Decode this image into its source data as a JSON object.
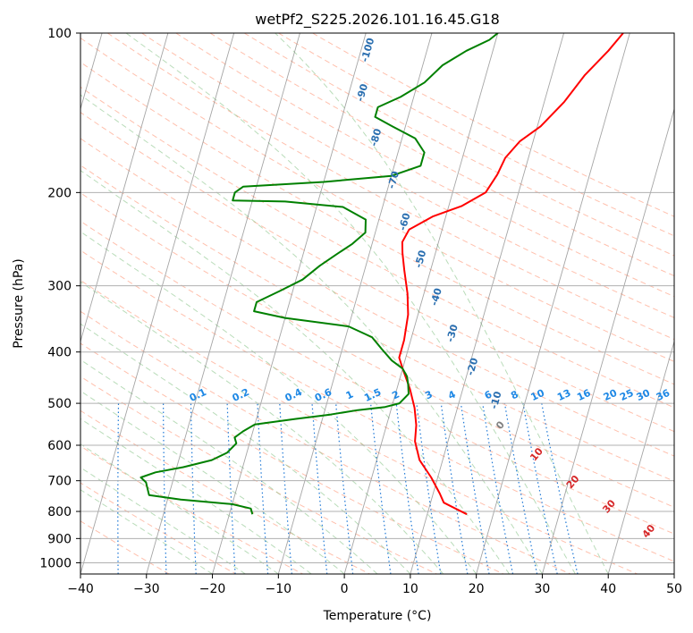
{
  "chart_data": {
    "type": "line",
    "title": "wetPf2_S225.2026.101.16.45.G18",
    "xlabel": "Temperature (°C)",
    "ylabel": "Pressure (hPa)",
    "xlim": [
      -40,
      50
    ],
    "ylim": [
      1050,
      100
    ],
    "y_scale": "log",
    "x_ticks": [
      "−40",
      "−30",
      "−20",
      "−10",
      "0",
      "10",
      "20",
      "30",
      "40",
      "50"
    ],
    "x_tick_values": [
      -40,
      -30,
      -20,
      -10,
      0,
      10,
      20,
      30,
      40,
      50
    ],
    "y_ticks": [
      "100",
      "200",
      "300",
      "400",
      "500",
      "600",
      "700",
      "800",
      "900",
      "1000"
    ],
    "y_tick_values": [
      100,
      200,
      300,
      400,
      500,
      600,
      700,
      800,
      900,
      1000
    ],
    "grid": true,
    "colors": {
      "temperature": "#ff0000",
      "dewpoint": "#008000",
      "isotherm": "#808080",
      "dry_adiabat": "#ff8c69",
      "moist_adiabat": "#7fbf7f",
      "mixing_ratio": "#1e78d6",
      "frame": "#000000"
    },
    "series": [
      {
        "name": "",
        "color": "#ff0000",
        "points": [
          [
            16,
            810
          ],
          [
            12,
            770
          ],
          [
            11,
            740
          ],
          [
            9,
            690
          ],
          [
            6.5,
            640
          ],
          [
            5,
            590
          ],
          [
            4.5,
            550
          ],
          [
            3.5,
            510
          ],
          [
            2,
            470
          ],
          [
            0,
            430
          ],
          [
            -1,
            410
          ],
          [
            -1,
            380
          ],
          [
            -1.5,
            340
          ],
          [
            -2.5,
            310
          ],
          [
            -4,
            280
          ],
          [
            -5,
            260
          ],
          [
            -5.5,
            248
          ],
          [
            -5,
            235
          ],
          [
            -2,
            222
          ],
          [
            2,
            212
          ],
          [
            5,
            200
          ],
          [
            6,
            185
          ],
          [
            6.5,
            172
          ],
          [
            8,
            160
          ],
          [
            10.5,
            150
          ],
          [
            13,
            135
          ],
          [
            15,
            120
          ],
          [
            17.5,
            108
          ],
          [
            19,
            100
          ]
        ]
      },
      {
        "name": "",
        "color": "#008000",
        "points": [
          [
            -16.5,
            810
          ],
          [
            -17,
            790
          ],
          [
            -20,
            775
          ],
          [
            -28,
            760
          ],
          [
            -33,
            745
          ],
          [
            -33.5,
            725
          ],
          [
            -34,
            705
          ],
          [
            -35,
            690
          ],
          [
            -33,
            675
          ],
          [
            -29,
            660
          ],
          [
            -25,
            640
          ],
          [
            -23,
            620
          ],
          [
            -22,
            595
          ],
          [
            -22.5,
            580
          ],
          [
            -21.5,
            565
          ],
          [
            -20,
            548
          ],
          [
            -14,
            535
          ],
          [
            -9,
            525
          ],
          [
            -5,
            515
          ],
          [
            -1,
            508
          ],
          [
            1,
            500
          ],
          [
            2,
            480
          ],
          [
            1.5,
            460
          ],
          [
            1,
            445
          ],
          [
            0,
            430
          ],
          [
            -2,
            415
          ],
          [
            -4,
            395
          ],
          [
            -6,
            375
          ],
          [
            -10,
            358
          ],
          [
            -20,
            345
          ],
          [
            -25,
            335
          ],
          [
            -25,
            322
          ],
          [
            -22,
            307
          ],
          [
            -19,
            292
          ],
          [
            -17,
            275
          ],
          [
            -15,
            262
          ],
          [
            -13,
            250
          ],
          [
            -11.5,
            238
          ],
          [
            -12,
            225
          ],
          [
            -16,
            213
          ],
          [
            -25,
            208
          ],
          [
            -33,
            207
          ],
          [
            -33,
            200
          ],
          [
            -32,
            195
          ],
          [
            -20,
            191
          ],
          [
            -10,
            186
          ],
          [
            -6,
            178
          ],
          [
            -6,
            168
          ],
          [
            -8,
            158
          ],
          [
            -12,
            150
          ],
          [
            -15,
            144
          ],
          [
            -15,
            138
          ],
          [
            -12,
            132
          ],
          [
            -9,
            124
          ],
          [
            -7,
            115
          ],
          [
            -4,
            108
          ],
          [
            -1,
            103
          ],
          [
            0,
            100
          ]
        ]
      }
    ],
    "isotherm_labels": [
      "-100",
      "-90",
      "-80",
      "-70",
      "-60",
      "-50",
      "-40",
      "-30",
      "-20",
      "-10"
    ],
    "isotherm_label_points": [
      [
        -18.5,
        108
      ],
      [
        -17.5,
        130
      ],
      [
        -13.5,
        158
      ],
      [
        -9,
        190
      ],
      [
        -5.5,
        228
      ],
      [
        -1.5,
        268
      ],
      [
        2.5,
        316
      ],
      [
        6.5,
        370
      ],
      [
        11,
        428
      ],
      [
        16,
        495
      ]
    ],
    "mixing_ratio_labels": [
      "0.1",
      "0.2",
      "0.4",
      "0.6",
      "1",
      "1.5",
      "2",
      "3",
      "4",
      "6",
      "8",
      "10",
      "13",
      "16",
      "20",
      "25",
      "30",
      "36"
    ],
    "mixing_ratio_values": [
      0.1,
      0.2,
      0.4,
      0.6,
      1,
      1.5,
      2,
      3,
      4,
      6,
      8,
      10,
      13,
      16,
      20,
      25,
      30,
      36
    ],
    "mixing_ratio_label_x": [
      -22,
      -15.5,
      -7.5,
      -3,
      1,
      4.5,
      8,
      13,
      16.5,
      22,
      26,
      29.5,
      33.5,
      36.5,
      40.5,
      43,
      45.5,
      48.5
    ],
    "moist_adiabat_labels": [
      "0",
      "10",
      "20",
      "30",
      "40"
    ],
    "moist_adiabat_label_points": [
      [
        24,
        555
      ],
      [
        29.5,
        630
      ],
      [
        35,
        710
      ],
      [
        40.5,
        790
      ],
      [
        46.5,
        880
      ]
    ],
    "moist_adiabat_label_colors": [
      "#808080",
      "#d62728",
      "#d62728",
      "#d62728",
      "#d62728"
    ]
  }
}
